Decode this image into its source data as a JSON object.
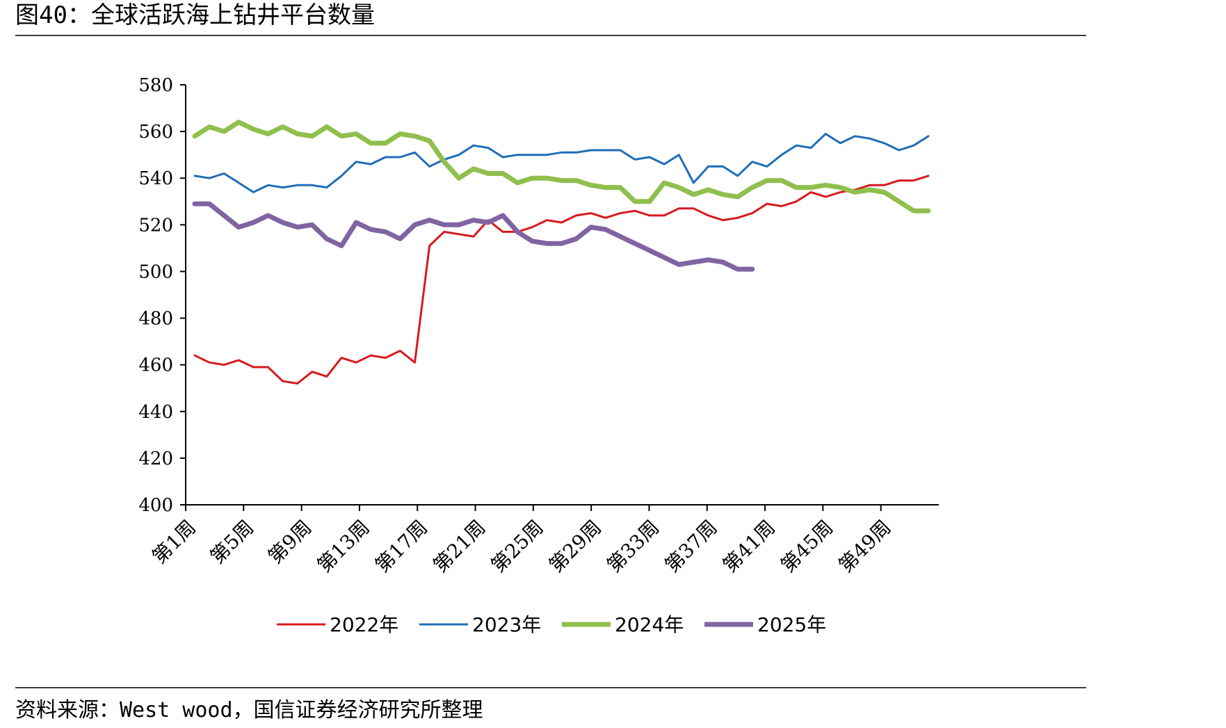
{
  "title": "图40：全球活跃海上钻井平台数量",
  "source": "资料来源：West wood，国信证券经济研究所整理",
  "chart_data": {
    "type": "line",
    "title": "",
    "xlabel": "",
    "ylabel": "",
    "ylim": [
      400,
      580
    ],
    "yticks": [
      400,
      420,
      440,
      460,
      480,
      500,
      520,
      540,
      560,
      580
    ],
    "x": [
      "第1周",
      "第2周",
      "第3周",
      "第4周",
      "第5周",
      "第6周",
      "第7周",
      "第8周",
      "第9周",
      "第10周",
      "第11周",
      "第12周",
      "第13周",
      "第14周",
      "第15周",
      "第16周",
      "第17周",
      "第18周",
      "第19周",
      "第20周",
      "第21周",
      "第22周",
      "第23周",
      "第24周",
      "第25周",
      "第26周",
      "第27周",
      "第28周",
      "第29周",
      "第30周",
      "第31周",
      "第32周",
      "第33周",
      "第34周",
      "第35周",
      "第36周",
      "第37周",
      "第38周",
      "第39周",
      "第40周",
      "第41周",
      "第42周",
      "第43周",
      "第44周",
      "第45周",
      "第46周",
      "第47周",
      "第48周",
      "第49周",
      "第50周",
      "第51周",
      "第52周"
    ],
    "xtick_labels": [
      "第1周",
      "第5周",
      "第9周",
      "第13周",
      "第17周",
      "第21周",
      "第25周",
      "第29周",
      "第33周",
      "第37周",
      "第41周",
      "第45周",
      "第49周"
    ],
    "grid": false,
    "legend_position": "bottom",
    "series": [
      {
        "name": "2022年",
        "color": "#d7191c",
        "values": [
          464,
          461,
          460,
          462,
          459,
          459,
          453,
          452,
          457,
          455,
          463,
          461,
          464,
          463,
          466,
          461,
          511,
          517,
          516,
          515,
          522,
          517,
          517,
          519,
          522,
          521,
          524,
          525,
          523,
          525,
          526,
          524,
          524,
          527,
          527,
          524,
          522,
          523,
          525,
          529,
          528,
          530,
          534,
          532,
          534,
          535,
          537,
          537,
          539,
          539,
          541,
          null
        ]
      },
      {
        "name": "2023年",
        "color": "#1f6db6",
        "values": [
          541,
          540,
          542,
          538,
          534,
          537,
          536,
          537,
          537,
          536,
          541,
          547,
          546,
          549,
          549,
          551,
          545,
          548,
          550,
          554,
          553,
          549,
          550,
          550,
          550,
          551,
          551,
          552,
          552,
          552,
          548,
          549,
          546,
          550,
          538,
          545,
          545,
          541,
          547,
          545,
          550,
          554,
          553,
          559,
          555,
          558,
          557,
          555,
          552,
          554,
          558,
          null
        ]
      },
      {
        "name": "2024年",
        "color": "#8fbf4d",
        "values": [
          558,
          562,
          560,
          564,
          561,
          559,
          562,
          559,
          558,
          562,
          558,
          559,
          555,
          555,
          559,
          558,
          556,
          547,
          540,
          544,
          542,
          542,
          538,
          540,
          540,
          539,
          539,
          537,
          536,
          536,
          530,
          530,
          538,
          536,
          533,
          535,
          533,
          532,
          536,
          539,
          539,
          536,
          536,
          537,
          536,
          534,
          535,
          534,
          530,
          526,
          526,
          null
        ]
      },
      {
        "name": "2025年",
        "color": "#8064a2",
        "values": [
          529,
          529,
          524,
          519,
          521,
          524,
          521,
          519,
          520,
          514,
          511,
          521,
          518,
          517,
          514,
          520,
          522,
          520,
          520,
          522,
          521,
          524,
          517,
          513,
          512,
          512,
          514,
          519,
          518,
          515,
          512,
          509,
          506,
          503,
          504,
          505,
          504,
          501,
          501,
          null,
          null,
          null,
          null,
          null,
          null,
          null,
          null,
          null,
          null,
          null,
          null,
          null
        ]
      }
    ]
  }
}
